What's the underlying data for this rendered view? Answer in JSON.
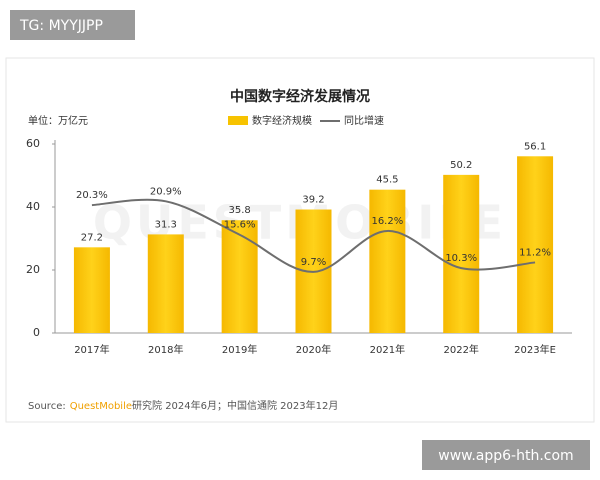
{
  "chart_data": {
    "type": "bar-line",
    "title": "中国数字经济发展情况",
    "unit_label": "单位：万亿元",
    "categories": [
      "2017年",
      "2018年",
      "2019年",
      "2020年",
      "2021年",
      "2022年",
      "2023年E"
    ],
    "series": [
      {
        "name": "数字经济规模",
        "type": "bar",
        "color": "#f7c300",
        "values": [
          27.2,
          31.3,
          35.8,
          39.2,
          45.5,
          50.2,
          56.1
        ]
      },
      {
        "name": "同比增速",
        "type": "line",
        "axis": "y2",
        "color": "#6e6e6e",
        "values": [
          20.3,
          20.9,
          15.6,
          9.7,
          16.2,
          10.3,
          11.2
        ],
        "value_labels": [
          "20.3%",
          "20.9%",
          "15.6%",
          "9.7%",
          "16.2%",
          "10.3%",
          "11.2%"
        ]
      }
    ],
    "ylim": [
      0,
      60
    ],
    "yticks": [
      0,
      20,
      40,
      60
    ],
    "y2lim": [
      0,
      30
    ],
    "source_prefix": "Source:",
    "source_brand": "QuestMobile",
    "source_rest": "研究院 2024年6月；中国信通院 2023年12月",
    "watermark": "QUESTMOBILE"
  },
  "overlay": {
    "top_left": "TG: MYYJJPP",
    "bottom_right": "www.app6-hth.com"
  }
}
